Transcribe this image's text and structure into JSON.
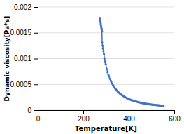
{
  "chart_data": {
    "type": "line",
    "xlabel": "Temperature[K]",
    "ylabel": "Dynamic viscosity[Pa*s]",
    "x": [
      273.15,
      274.0,
      275.0,
      276.0,
      277.0,
      278.0,
      279.0,
      280.0,
      281.0,
      282.0,
      283.15,
      285.0,
      287.0,
      289.0,
      291.0,
      293.15,
      295.0,
      297.0,
      299.0,
      303.15,
      307.0,
      311.0,
      313.15,
      317.0,
      321.0,
      323.15,
      327.0,
      331.0,
      333.15,
      337.0,
      341.0,
      343.15,
      347.0,
      351.0,
      353.15,
      357.0,
      361.0,
      363.15,
      367.0,
      371.0,
      373.15,
      377.0,
      381.0,
      383.15,
      387.0,
      391.0,
      393.15,
      397.0,
      401.0,
      403.15,
      407.0,
      411.0,
      413.15,
      417.0,
      421.0,
      423.15,
      427.0,
      431.0,
      433.15,
      437.0,
      441.0,
      443.15,
      447.0,
      451.0,
      453.15,
      457.0,
      461.0,
      463.15,
      467.0,
      471.0,
      473.15,
      477.0,
      481.0,
      483.15,
      487.0,
      491.0,
      493.15,
      497.0,
      501.0,
      503.15,
      507.0,
      511.0,
      513.15,
      517.0,
      521.0,
      523.15,
      527.0,
      531.0,
      533.15,
      537.0,
      541.0,
      543.15,
      547.0,
      551.0,
      553.15
    ],
    "values": [
      0.001787,
      0.00176,
      0.00173,
      0.0017,
      0.001674,
      0.001645,
      0.001617,
      0.00159,
      0.001563,
      0.001535,
      0.001307,
      0.00125,
      0.001195,
      0.001143,
      0.001093,
      0.001002,
      0.000963,
      0.000926,
      0.000891,
      0.000798,
      0.000735,
      0.000681,
      0.000653,
      0.000609,
      0.00057,
      0.000547,
      0.000514,
      0.000484,
      0.000467,
      0.000441,
      0.000418,
      0.000404,
      0.000384,
      0.000366,
      0.000355,
      0.000339,
      0.000324,
      0.000315,
      0.000302,
      0.00029,
      0.000282,
      0.000271,
      0.000261,
      0.000254,
      0.000245,
      0.000237,
      0.00023,
      0.000223,
      0.000216,
      0.00021,
      0.000204,
      0.000198,
      0.000193,
      0.000188,
      0.000183,
      0.000178,
      0.000174,
      0.00017,
      0.000165,
      0.000162,
      0.000158,
      0.000153,
      0.00015,
      0.000147,
      0.000143,
      0.00014,
      0.000137,
      0.000134,
      0.000131,
      0.000128,
      0.000126,
      0.000123,
      0.000121,
      0.000119,
      0.000117,
      0.000115,
      0.000113,
      0.000111,
      0.000109,
      0.000107,
      0.000105,
      0.000104,
      0.000102,
      0.0001,
      9.85e-05,
      9.73e-05,
      9.58e-05,
      9.43e-05,
      9.27e-05,
      9.13e-05,
      8.99e-05,
      8.86e-05,
      8.73e-05,
      8.6e-05,
      8.48e-05
    ],
    "color": "#4472C4",
    "marker": "circle",
    "xlim": [
      0,
      600
    ],
    "ylim": [
      0,
      0.002
    ],
    "xticks": [
      0,
      200,
      400,
      600
    ],
    "yticks": [
      0,
      0.0005,
      0.001,
      0.0015,
      0.002
    ],
    "grid": true
  }
}
